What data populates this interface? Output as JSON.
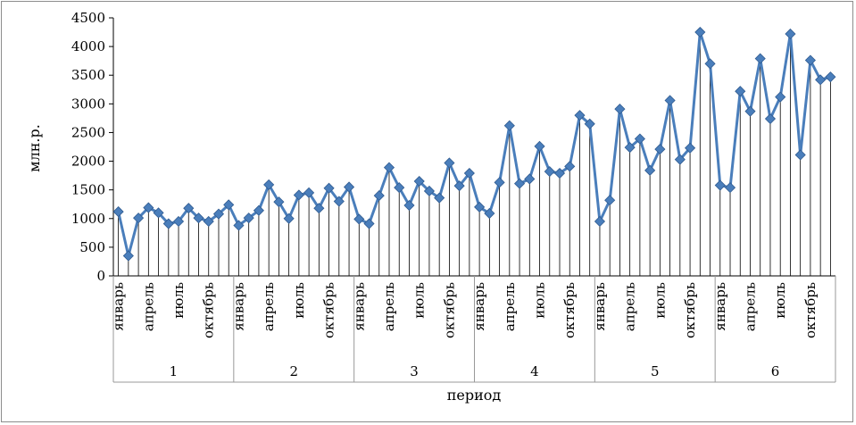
{
  "chart_data": {
    "type": "line",
    "title": "",
    "xlabel": "период",
    "ylabel": "млн.р.",
    "ylim": [
      0,
      4500
    ],
    "yticks": [
      0,
      500,
      1000,
      1500,
      2000,
      2500,
      3000,
      3500,
      4000,
      4500
    ],
    "grid": false,
    "drop_lines": true,
    "marker": "diamond",
    "color": "#4a7ebb",
    "groups": [
      "1",
      "2",
      "3",
      "4",
      "5",
      "6"
    ],
    "month_labels": [
      "январь",
      "апрель",
      "июль",
      "октябрь"
    ],
    "label_month_indices": [
      0,
      3,
      6,
      9
    ],
    "series": [
      {
        "values": [
          1120,
          350,
          1010,
          1190,
          1100,
          910,
          950,
          1180,
          1010,
          950,
          1080,
          1240,
          880,
          1010,
          1140,
          1590,
          1290,
          1000,
          1410,
          1450,
          1180,
          1530,
          1300,
          1550,
          990,
          910,
          1400,
          1890,
          1540,
          1230,
          1650,
          1480,
          1360,
          1970,
          1570,
          1790,
          1200,
          1090,
          1630,
          2620,
          1610,
          1690,
          2260,
          1820,
          1790,
          1910,
          2800,
          2650,
          950,
          1320,
          2910,
          2240,
          2390,
          1840,
          2210,
          3060,
          2030,
          2230,
          4250,
          3700,
          1580,
          1540,
          3220,
          2870,
          3790,
          2740,
          3120,
          4220,
          2110,
          3760,
          3420,
          3470
        ]
      }
    ]
  }
}
